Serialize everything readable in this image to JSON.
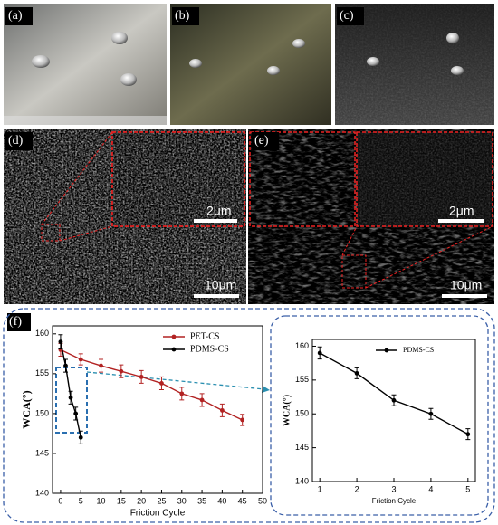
{
  "panel_labels": [
    "(a)",
    "(b)",
    "(c)",
    "(d)",
    "(e)",
    "(f)"
  ],
  "scale_bars": [
    "2μm",
    "10μm",
    "2μm",
    "10μm"
  ],
  "chart_data": [
    {
      "type": "line",
      "xlabel": "Friction Cycle",
      "ylabel": "WCA(°)",
      "xlim": [
        -2,
        50
      ],
      "xticks": [
        0,
        5,
        10,
        15,
        20,
        25,
        30,
        35,
        40,
        45,
        50
      ],
      "ylim": [
        140,
        161
      ],
      "yticks": [
        140,
        145,
        150,
        155,
        160
      ],
      "legend": "upper right",
      "grid": false,
      "series": [
        {
          "name": "PET-CS",
          "color": "#b22222",
          "x": [
            0,
            5,
            10,
            15,
            20,
            25,
            30,
            35,
            40,
            45
          ],
          "values": [
            158,
            156.8,
            156,
            155.3,
            154.6,
            153.8,
            152.5,
            151.7,
            150.4,
            149.2
          ],
          "errors": [
            0.8,
            0.7,
            0.8,
            0.8,
            0.8,
            0.8,
            0.8,
            0.8,
            0.8,
            0.7
          ]
        },
        {
          "name": "PDMS-CS",
          "color": "#000000",
          "x": [
            0,
            1.25,
            2.5,
            3.75,
            5
          ],
          "values": [
            159,
            156,
            152,
            150,
            147
          ],
          "errors": [
            0.9,
            0.8,
            0.8,
            0.8,
            0.8
          ]
        }
      ]
    },
    {
      "type": "line",
      "xlabel": "Friction Cycle",
      "ylabel": "WCA(°)",
      "xlim": [
        0.8,
        5.2
      ],
      "xticks": [
        1,
        2,
        3,
        4,
        5
      ],
      "ylim": [
        140,
        161
      ],
      "yticks": [
        140,
        145,
        150,
        155,
        160
      ],
      "legend": "upper right",
      "grid": false,
      "series": [
        {
          "name": "PDMS-CS",
          "color": "#000000",
          "x": [
            1,
            2,
            3,
            4,
            5
          ],
          "values": [
            159,
            156,
            152,
            150,
            147
          ],
          "errors": [
            0.9,
            0.8,
            0.8,
            0.8,
            0.8
          ]
        }
      ]
    }
  ]
}
